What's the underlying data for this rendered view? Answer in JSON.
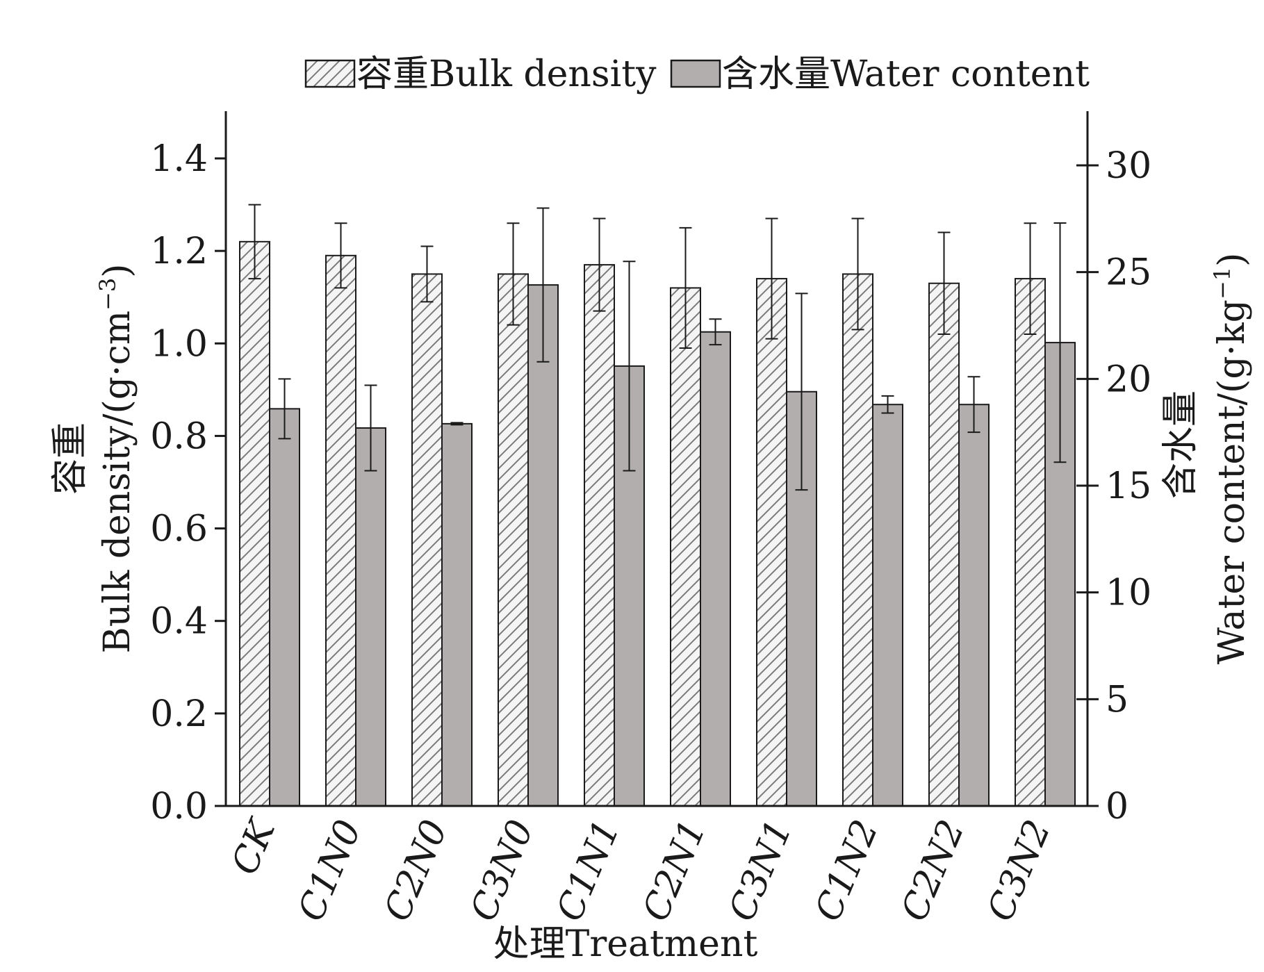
{
  "chart_data": {
    "type": "bar",
    "categories": [
      "CK",
      "C1N0",
      "C2N0",
      "C3N0",
      "C1N1",
      "C2N1",
      "C3N1",
      "C1N2",
      "C2N2",
      "C3N2"
    ],
    "series": [
      {
        "name": "容重Bulk density",
        "axis": "left",
        "fill": "hatched",
        "values": [
          1.22,
          1.19,
          1.15,
          1.15,
          1.17,
          1.12,
          1.14,
          1.15,
          1.13,
          1.14
        ],
        "errors": [
          0.08,
          0.07,
          0.06,
          0.11,
          0.1,
          0.13,
          0.13,
          0.12,
          0.11,
          0.12
        ]
      },
      {
        "name": "含水量Water content",
        "axis": "right",
        "fill": "solid",
        "values": [
          18.6,
          17.7,
          17.9,
          24.4,
          20.6,
          22.2,
          19.4,
          18.8,
          18.8,
          21.7
        ],
        "errors": [
          1.4,
          2.0,
          0.05,
          3.6,
          4.9,
          0.6,
          4.6,
          0.4,
          1.3,
          5.6
        ]
      }
    ],
    "y_left": {
      "label_cn": "容重",
      "label_en": "Bulk density/(g·cm",
      "label_sup": "−3",
      "label_close": ")",
      "ylim": [
        0,
        1.5
      ],
      "ticks": [
        "0.0",
        "0.2",
        "0.4",
        "0.6",
        "0.8",
        "1.0",
        "1.2",
        "1.4"
      ]
    },
    "y_right": {
      "label_cn": "含水量",
      "label_en": "Water content/(g·kg",
      "label_sup": "−1",
      "label_close": ")",
      "ylim": [
        0,
        32.5
      ],
      "ticks": [
        "0",
        "5",
        "10",
        "15",
        "20",
        "25",
        "30"
      ]
    },
    "xlabel": "处理Treatment",
    "legend_placement": "top",
    "grid": false,
    "colors": {
      "solid_bar": "#b3aeae",
      "hatch_bar_bg": "#f5f5f5",
      "hatch_line": "#7a7a7a",
      "axis": "#1a1a1a"
    }
  }
}
